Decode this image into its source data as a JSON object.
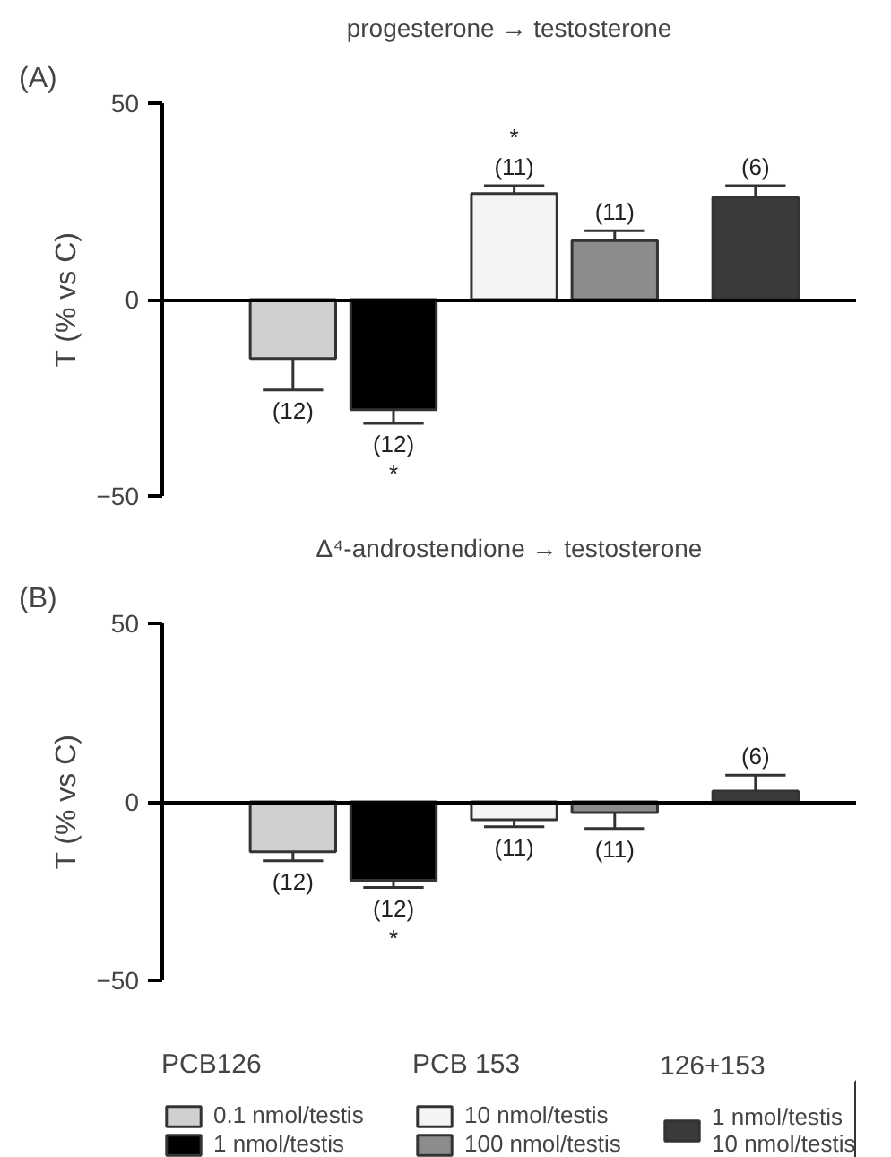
{
  "chart_data": [
    {
      "type": "bar",
      "title": "progesterone → testosterone",
      "ylabel": "T (% vs C)",
      "annotations": [
        "(A)",
        {
          "text": "(12)",
          "y": -23
        },
        {
          "text": "(12)\n*",
          "y": -31.5
        },
        {
          "text": "*\n(11)",
          "y": 29
        },
        {
          "text": "(11)",
          "y": 17.5
        },
        {
          "text": "(6)",
          "y": 29
        }
      ],
      "categories": [
        null,
        null,
        null,
        null,
        null
      ],
      "ylim": [
        -50,
        50
      ],
      "yticks": [
        -50,
        0,
        50
      ],
      "legend": false,
      "series": [
        {
          "color": "#d0d0d0",
          "values": [
            -15,
            null,
            null,
            null,
            null
          ],
          "errors": [
            8,
            null,
            null,
            null,
            null
          ]
        },
        {
          "color": "#000000",
          "values": [
            null,
            -28,
            null,
            null,
            null
          ],
          "errors": [
            null,
            3.5,
            null,
            null,
            null
          ]
        },
        {
          "color": "#f4f4f4",
          "values": [
            null,
            null,
            27,
            null,
            null
          ],
          "errors": [
            null,
            null,
            2,
            null,
            null
          ]
        },
        {
          "color": "#8c8c8c",
          "values": [
            null,
            null,
            null,
            15,
            null
          ],
          "errors": [
            null,
            null,
            null,
            2.5,
            null
          ]
        },
        {
          "color": "#3a3a3a",
          "values": [
            null,
            null,
            null,
            null,
            26
          ],
          "errors": [
            null,
            null,
            null,
            null,
            3
          ]
        }
      ]
    },
    {
      "type": "bar",
      "title": "Δ⁴-androstendione → testosterone",
      "ylabel": "T (% vs C)",
      "annotations": [
        "(B)",
        "PCB126",
        "PCB 153",
        "126+153",
        {
          "text": "(12)",
          "y": -16.5
        },
        {
          "text": "(12)\n*",
          "y": -24
        },
        {
          "text": "(11)",
          "y": -7
        },
        {
          "text": "(11)",
          "y": -7.5
        },
        {
          "text": "(6)",
          "y": 7.5
        }
      ],
      "categories": [
        null,
        null,
        null,
        null,
        null
      ],
      "ylim": [
        -50,
        50
      ],
      "yticks": [
        -50,
        0,
        50
      ],
      "legend": "bottom",
      "series": [
        {
          "name": "0.1 nmol/testis",
          "color": "#d0d0d0",
          "values": [
            -14,
            null,
            null,
            null,
            null
          ],
          "errors": [
            2.5,
            null,
            null,
            null,
            null
          ]
        },
        {
          "name": "1 nmol/testis",
          "color": "#000000",
          "values": [
            null,
            -22,
            null,
            null,
            null
          ],
          "errors": [
            null,
            2,
            null,
            null,
            null
          ]
        },
        {
          "name": "10 nmol/testis",
          "color": "#f4f4f4",
          "values": [
            null,
            null,
            -5,
            null,
            null
          ],
          "errors": [
            null,
            null,
            2,
            null,
            null
          ]
        },
        {
          "name": "100 nmol/testis",
          "color": "#8c8c8c",
          "values": [
            null,
            null,
            null,
            -3,
            null
          ],
          "errors": [
            null,
            null,
            null,
            4.5,
            null
          ]
        },
        {
          "name": "1 nmol/testis\n10 nmol/testis",
          "color": "#3a3a3a",
          "values": [
            null,
            null,
            null,
            null,
            3
          ],
          "errors": [
            null,
            null,
            null,
            null,
            4.5
          ]
        }
      ]
    }
  ]
}
